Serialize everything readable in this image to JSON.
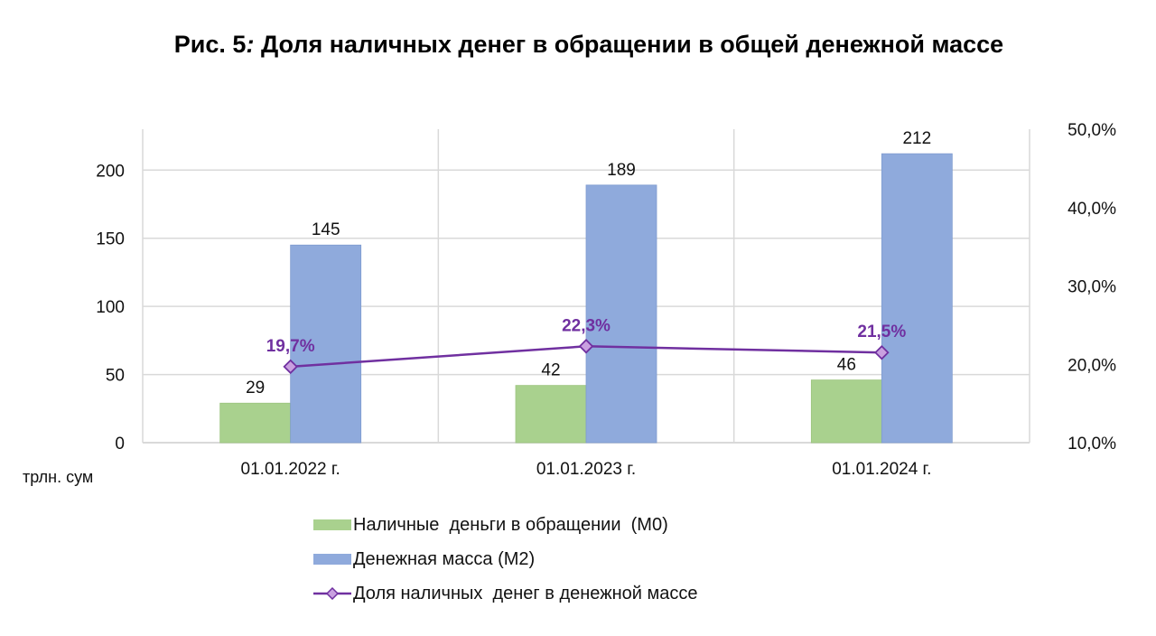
{
  "title": {
    "prefix": "Рис. ",
    "number": "5",
    "colon": ":",
    "text": " Доля наличных денег в обращении в общей денежной массе"
  },
  "unit_label": "трлн. сум",
  "colors": {
    "m0": "#a9d18e",
    "m2": "#8faadc",
    "share": "#7030a0",
    "share_marker": "#c9a0e0",
    "grid": "#d9d9d9"
  },
  "chart_data": {
    "type": "bar",
    "title": "Рис. 5: Доля наличных денег в обращении в общей денежной массе",
    "categories": [
      "01.01.2022 г.",
      "01.01.2023 г.",
      "01.01.2024 г."
    ],
    "series": [
      {
        "name": "Наличные  деньги в обращении  (М0)",
        "type": "bar",
        "axis": "left",
        "values": [
          29,
          42,
          46
        ],
        "labels": [
          "29",
          "42",
          "46"
        ]
      },
      {
        "name": "Денежная масса (М2)",
        "type": "bar",
        "axis": "right-bars",
        "values": [
          145,
          189,
          212
        ],
        "labels": [
          "145",
          "189",
          "212"
        ]
      },
      {
        "name": "Доля наличных  денег в денежной массе",
        "type": "line",
        "axis": "right",
        "values": [
          19.7,
          22.3,
          21.5
        ],
        "labels": [
          "19,7%",
          "22,3%",
          "21,5%"
        ]
      }
    ],
    "ylabel": "трлн. сум",
    "ylim": [
      0,
      230
    ],
    "yticks": [
      0,
      50,
      100,
      150,
      200
    ],
    "ytick_labels": [
      "0",
      "50",
      "100",
      "150",
      "200"
    ],
    "y2lim": [
      10,
      50
    ],
    "y2ticks": [
      10,
      20,
      30,
      40,
      50
    ],
    "y2tick_labels": [
      "10,0%",
      "20,0%",
      "30,0%",
      "40,0%",
      "50,0%"
    ],
    "grid": true,
    "legend": "bottom"
  }
}
